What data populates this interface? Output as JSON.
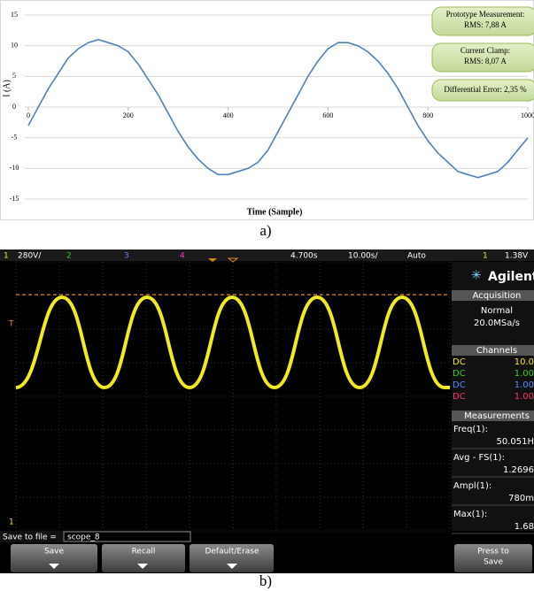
{
  "chart_data": {
    "type": "line",
    "x": [
      0,
      20,
      40,
      60,
      80,
      100,
      120,
      140,
      160,
      180,
      200,
      220,
      240,
      260,
      280,
      300,
      320,
      340,
      360,
      380,
      400,
      420,
      440,
      460,
      480,
      500,
      520,
      540,
      560,
      580,
      600,
      620,
      640,
      660,
      680,
      700,
      720,
      740,
      760,
      780,
      800,
      820,
      840,
      860,
      880,
      900,
      920,
      940,
      960,
      980,
      1000
    ],
    "values": [
      -3,
      0,
      3,
      5.5,
      8,
      9.5,
      10.5,
      11,
      10.5,
      10,
      9,
      7,
      4.5,
      2,
      -1,
      -4,
      -6.5,
      -8.5,
      -10,
      -11,
      -11,
      -10.5,
      -10,
      -9,
      -7,
      -4,
      -1,
      2,
      5,
      7.5,
      9.5,
      10.5,
      10.5,
      10,
      9,
      7.5,
      5.5,
      3,
      0,
      -3,
      -5.5,
      -7.5,
      -9,
      -10.5,
      -11,
      -11.5,
      -11,
      -10.5,
      -9,
      -7,
      -5
    ],
    "color": "#4f81bd",
    "xlim": [
      0,
      1000
    ],
    "ylim": [
      -15,
      15
    ],
    "xticks": [
      0,
      200,
      400,
      600,
      800,
      1000
    ],
    "yticks": [
      -15,
      -10,
      -5,
      0,
      5,
      10,
      15
    ],
    "grid": true,
    "ylabel": "I (A)",
    "xlabel": "Time (Sample)",
    "annotations": [
      [
        "Prototype Measurement:",
        "RMS: 7,88 A"
      ],
      [
        "Current Clamp:",
        "RMS: 8,07 A"
      ],
      [
        "Differential Error: 2,35 %"
      ]
    ],
    "caption": "a)"
  },
  "scope": {
    "top_bar": [
      "1",
      "280V/",
      "2",
      "3",
      "4",
      "4.700s",
      "10.00s/",
      "Auto",
      "1",
      "1.38V"
    ],
    "markers": [
      "T",
      "1"
    ],
    "brand": "Agilent",
    "acquisition": {
      "title": "Acquisition",
      "mode": "Normal",
      "rate": "20.0MSa/s"
    },
    "channels": {
      "title": "Channels",
      "rows": [
        [
          "DC",
          "10.0"
        ],
        [
          "DC",
          "1.00"
        ],
        [
          "DC",
          "1.00"
        ],
        [
          "DC",
          "1.00"
        ]
      ]
    },
    "measurements": {
      "title": "Measurements",
      "items": [
        [
          "Freq(1):",
          "50.051H"
        ],
        [
          "Avg - FS(1):",
          "1.2696"
        ],
        [
          "Ampl(1):",
          "780m"
        ],
        [
          "Max(1):",
          "1.68"
        ]
      ]
    },
    "save_label": "Save to file =",
    "file_name": "scope_8",
    "softkeys": [
      "Save",
      "Recall",
      "Default/Erase"
    ],
    "press_key": [
      "Press to",
      "Save"
    ],
    "caption": "b)"
  }
}
